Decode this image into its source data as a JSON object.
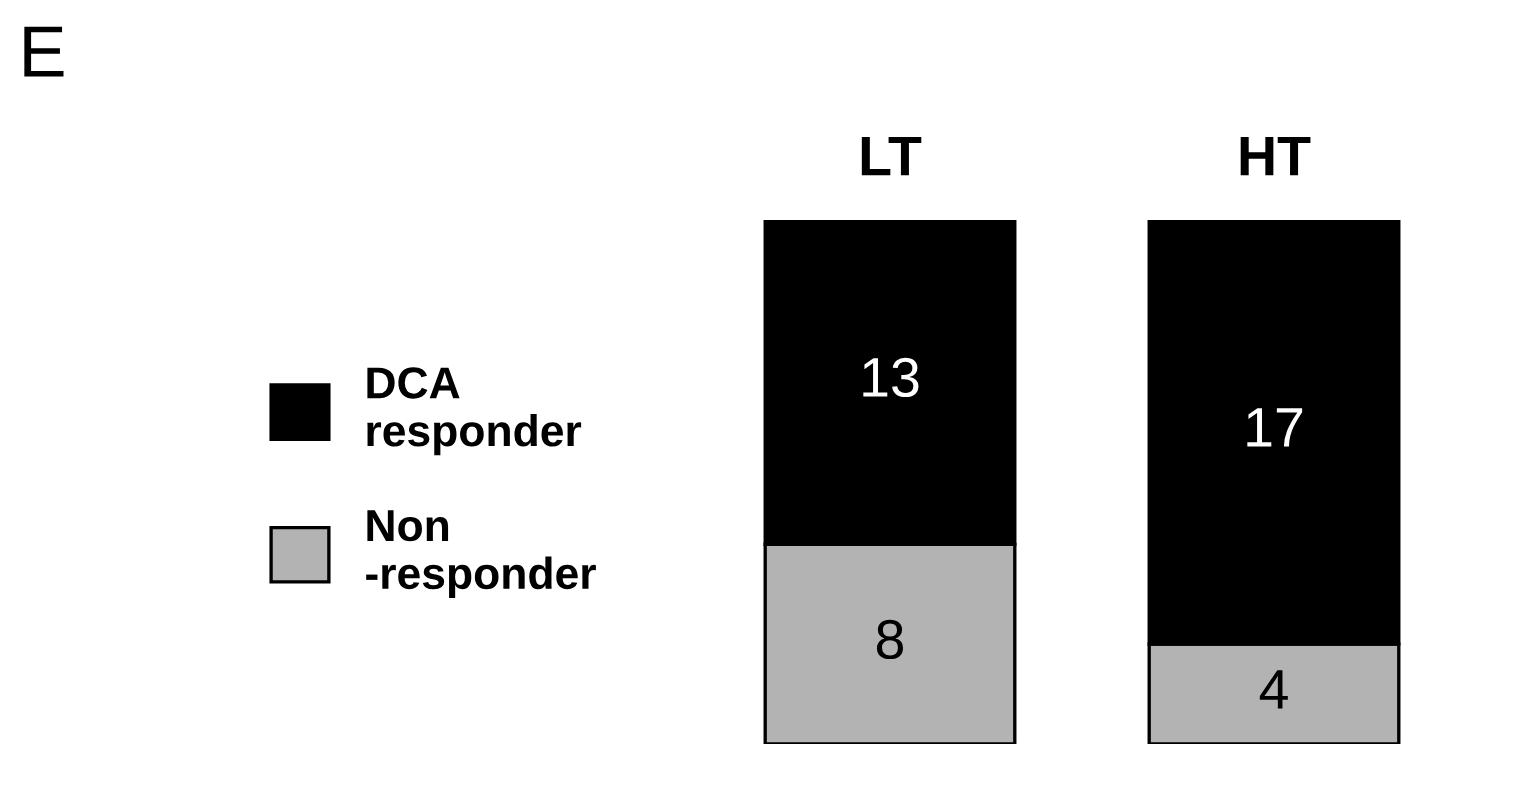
{
  "chart_data": {
    "type": "bar",
    "stacked": true,
    "categories": [
      "LT",
      "HT"
    ],
    "series": [
      {
        "name": "Non\n-responder",
        "color": "#b3b3b3",
        "values": [
          8,
          4
        ]
      },
      {
        "name": "DCA\nresponder",
        "color": "#000000",
        "values": [
          13,
          17
        ]
      }
    ],
    "data_labels": true,
    "legend": "left",
    "grid": false,
    "annotations": [
      "E"
    ]
  }
}
